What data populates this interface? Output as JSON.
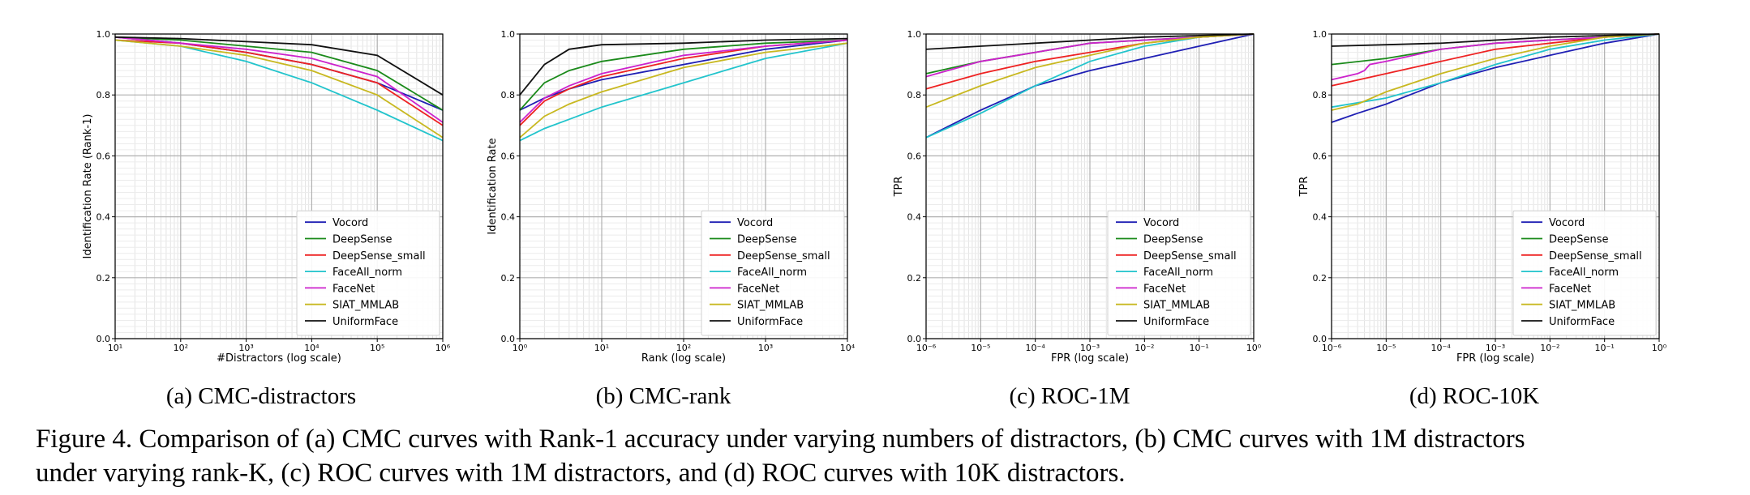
{
  "figure": {
    "caption_lines": [
      "Figure 4. Comparison of (a) CMC curves with Rank-1 accuracy under varying numbers of distractors, (b) CMC curves with 1M distractors",
      "under varying rank-K, (c) ROC curves with 1M distractors, and (d) ROC curves with 10K distractors."
    ]
  },
  "legend_colors": {
    "Vocord": "#1f1fb4",
    "DeepSense": "#1a8a1a",
    "DeepSense_small": "#ee2222",
    "FaceAll_norm": "#22c4cc",
    "FaceNet": "#cc22cc",
    "SIAT_MMLAB": "#c8b820",
    "UniformFace": "#111111"
  },
  "chart_data": [
    {
      "type": "line",
      "subcaption": "(a)  CMC-distractors",
      "xlabel": "#Distractors (log scale)",
      "ylabel": "Identification Rate (Rank-1)",
      "xscale": "log",
      "xlim": [
        10,
        1000000
      ],
      "ylim": [
        0.0,
        1.0
      ],
      "x_ticks": [
        10,
        100,
        1000,
        10000,
        100000,
        1000000
      ],
      "x_tick_labels": [
        "10¹",
        "10²",
        "10³",
        "10⁴",
        "10⁵",
        "10⁶"
      ],
      "y_ticks": [
        0.0,
        0.2,
        0.4,
        0.6,
        0.8,
        1.0
      ],
      "y_tick_labels": [
        "0.0",
        "0.2",
        "0.4",
        "0.6",
        "0.8",
        "1.0"
      ],
      "grid": true,
      "legend_position": "lower-right",
      "series": [
        {
          "name": "Vocord",
          "x": [
            10,
            100,
            1000,
            10000,
            100000,
            1000000
          ],
          "values": [
            0.99,
            0.97,
            0.94,
            0.9,
            0.84,
            0.75
          ]
        },
        {
          "name": "DeepSense",
          "x": [
            10,
            100,
            1000,
            10000,
            100000,
            1000000
          ],
          "values": [
            0.99,
            0.98,
            0.96,
            0.94,
            0.88,
            0.75
          ]
        },
        {
          "name": "DeepSense_small",
          "x": [
            10,
            100,
            1000,
            10000,
            100000,
            1000000
          ],
          "values": [
            0.98,
            0.97,
            0.94,
            0.9,
            0.84,
            0.7
          ]
        },
        {
          "name": "FaceAll_norm",
          "x": [
            10,
            100,
            1000,
            10000,
            100000,
            1000000
          ],
          "values": [
            0.98,
            0.96,
            0.91,
            0.84,
            0.75,
            0.65
          ]
        },
        {
          "name": "FaceNet",
          "x": [
            10,
            100,
            1000,
            10000,
            100000,
            1000000
          ],
          "values": [
            0.99,
            0.97,
            0.95,
            0.92,
            0.86,
            0.71
          ]
        },
        {
          "name": "SIAT_MMLAB",
          "x": [
            10,
            100,
            1000,
            10000,
            100000,
            1000000
          ],
          "values": [
            0.98,
            0.96,
            0.93,
            0.88,
            0.8,
            0.66
          ]
        },
        {
          "name": "UniformFace",
          "x": [
            10,
            100,
            1000,
            10000,
            100000,
            1000000
          ],
          "values": [
            0.99,
            0.985,
            0.975,
            0.965,
            0.93,
            0.8
          ]
        }
      ]
    },
    {
      "type": "line",
      "subcaption": "(b)  CMC-rank",
      "xlabel": "Rank (log scale)",
      "ylabel": "Identification Rate",
      "xscale": "log",
      "xlim": [
        1,
        10000
      ],
      "ylim": [
        0.0,
        1.0
      ],
      "x_ticks": [
        1,
        10,
        100,
        1000,
        10000
      ],
      "x_tick_labels": [
        "10⁰",
        "10¹",
        "10²",
        "10³",
        "10⁴"
      ],
      "y_ticks": [
        0.0,
        0.2,
        0.4,
        0.6,
        0.8,
        1.0
      ],
      "y_tick_labels": [
        "0.0",
        "0.2",
        "0.4",
        "0.6",
        "0.8",
        "1.0"
      ],
      "grid": true,
      "legend_position": "lower-right",
      "series": [
        {
          "name": "Vocord",
          "x": [
            1,
            2,
            4,
            10,
            100,
            1000,
            10000
          ],
          "values": [
            0.75,
            0.79,
            0.82,
            0.85,
            0.9,
            0.95,
            0.98
          ]
        },
        {
          "name": "DeepSense",
          "x": [
            1,
            2,
            4,
            10,
            100,
            1000,
            10000
          ],
          "values": [
            0.75,
            0.84,
            0.88,
            0.91,
            0.95,
            0.97,
            0.98
          ]
        },
        {
          "name": "DeepSense_small",
          "x": [
            1,
            2,
            4,
            10,
            100,
            1000,
            10000
          ],
          "values": [
            0.7,
            0.78,
            0.82,
            0.86,
            0.92,
            0.96,
            0.98
          ]
        },
        {
          "name": "FaceAll_norm",
          "x": [
            1,
            2,
            4,
            10,
            100,
            1000,
            10000
          ],
          "values": [
            0.65,
            0.69,
            0.72,
            0.76,
            0.84,
            0.92,
            0.97
          ]
        },
        {
          "name": "FaceNet",
          "x": [
            1,
            2,
            4,
            10,
            100,
            1000,
            10000
          ],
          "values": [
            0.71,
            0.79,
            0.83,
            0.87,
            0.93,
            0.96,
            0.98
          ]
        },
        {
          "name": "SIAT_MMLAB",
          "x": [
            1,
            2,
            4,
            10,
            100,
            1000,
            10000
          ],
          "values": [
            0.66,
            0.73,
            0.77,
            0.81,
            0.89,
            0.94,
            0.97
          ]
        },
        {
          "name": "UniformFace",
          "x": [
            1,
            2,
            4,
            10,
            100,
            1000,
            10000
          ],
          "values": [
            0.8,
            0.9,
            0.95,
            0.965,
            0.97,
            0.98,
            0.985
          ]
        }
      ]
    },
    {
      "type": "line",
      "subcaption": "(c)  ROC-1M",
      "xlabel": "FPR (log scale)",
      "ylabel": "TPR",
      "xscale": "log",
      "xlim": [
        1e-06,
        1
      ],
      "ylim": [
        0.0,
        1.0
      ],
      "x_ticks": [
        1e-06,
        1e-05,
        0.0001,
        0.001,
        0.01,
        0.1,
        1
      ],
      "x_tick_labels": [
        "10⁻⁶",
        "10⁻⁵",
        "10⁻⁴",
        "10⁻³",
        "10⁻²",
        "10⁻¹",
        "10⁰"
      ],
      "y_ticks": [
        0.0,
        0.2,
        0.4,
        0.6,
        0.8,
        1.0
      ],
      "y_tick_labels": [
        "0.0",
        "0.2",
        "0.4",
        "0.6",
        "0.8",
        "1.0"
      ],
      "grid": true,
      "legend_position": "lower-right",
      "series": [
        {
          "name": "Vocord",
          "x": [
            1e-06,
            1e-05,
            0.0001,
            0.001,
            0.01,
            0.1,
            1
          ],
          "values": [
            0.66,
            0.75,
            0.83,
            0.88,
            0.92,
            0.96,
            1.0
          ]
        },
        {
          "name": "DeepSense",
          "x": [
            1e-06,
            1e-05,
            0.0001,
            0.001,
            0.01,
            0.1,
            1
          ],
          "values": [
            0.87,
            0.91,
            0.94,
            0.97,
            0.98,
            0.99,
            1.0
          ]
        },
        {
          "name": "DeepSense_small",
          "x": [
            1e-06,
            1e-05,
            0.0001,
            0.001,
            0.01,
            0.1,
            1
          ],
          "values": [
            0.82,
            0.87,
            0.91,
            0.94,
            0.97,
            0.99,
            1.0
          ]
        },
        {
          "name": "FaceAll_norm",
          "x": [
            1e-06,
            1e-05,
            0.0001,
            0.001,
            0.01,
            0.1,
            1
          ],
          "values": [
            0.66,
            0.74,
            0.83,
            0.91,
            0.96,
            0.99,
            1.0
          ]
        },
        {
          "name": "FaceNet",
          "x": [
            1e-06,
            1e-05,
            0.0001,
            0.001,
            0.01,
            0.1,
            1
          ],
          "values": [
            0.86,
            0.91,
            0.94,
            0.97,
            0.98,
            0.99,
            1.0
          ]
        },
        {
          "name": "SIAT_MMLAB",
          "x": [
            1e-06,
            1e-05,
            0.0001,
            0.001,
            0.01,
            0.1,
            1
          ],
          "values": [
            0.76,
            0.83,
            0.89,
            0.93,
            0.97,
            0.99,
            1.0
          ]
        },
        {
          "name": "UniformFace",
          "x": [
            1e-06,
            1e-05,
            0.0001,
            0.001,
            0.01,
            0.1,
            1
          ],
          "values": [
            0.95,
            0.96,
            0.97,
            0.98,
            0.99,
            0.995,
            1.0
          ]
        }
      ]
    },
    {
      "type": "line",
      "subcaption": "(d)  ROC-10K",
      "xlabel": "FPR (log scale)",
      "ylabel": "TPR",
      "xscale": "log",
      "xlim": [
        1e-06,
        1
      ],
      "ylim": [
        0.0,
        1.0
      ],
      "x_ticks": [
        1e-06,
        1e-05,
        0.0001,
        0.001,
        0.01,
        0.1,
        1
      ],
      "x_tick_labels": [
        "10⁻⁶",
        "10⁻⁵",
        "10⁻⁴",
        "10⁻³",
        "10⁻²",
        "10⁻¹",
        "10⁰"
      ],
      "y_ticks": [
        0.0,
        0.2,
        0.4,
        0.6,
        0.8,
        1.0
      ],
      "y_tick_labels": [
        "0.0",
        "0.2",
        "0.4",
        "0.6",
        "0.8",
        "1.0"
      ],
      "grid": true,
      "legend_position": "lower-right",
      "series": [
        {
          "name": "Vocord",
          "x": [
            1e-06,
            3e-06,
            1e-05,
            0.0001,
            0.001,
            0.01,
            0.1,
            1
          ],
          "values": [
            0.71,
            0.74,
            0.77,
            0.84,
            0.89,
            0.93,
            0.97,
            1.0
          ]
        },
        {
          "name": "DeepSense",
          "x": [
            1e-06,
            1e-05,
            0.0001,
            0.001,
            0.01,
            0.1,
            1
          ],
          "values": [
            0.9,
            0.92,
            0.95,
            0.97,
            0.98,
            0.99,
            1.0
          ]
        },
        {
          "name": "DeepSense_small",
          "x": [
            1e-06,
            1e-05,
            0.0001,
            0.001,
            0.01,
            0.1,
            1
          ],
          "values": [
            0.83,
            0.87,
            0.91,
            0.95,
            0.97,
            0.99,
            1.0
          ]
        },
        {
          "name": "FaceAll_norm",
          "x": [
            1e-06,
            1e-05,
            0.0001,
            0.001,
            0.01,
            0.1,
            1
          ],
          "values": [
            0.76,
            0.79,
            0.84,
            0.9,
            0.95,
            0.98,
            1.0
          ]
        },
        {
          "name": "FaceNet",
          "x": [
            1e-06,
            3e-06,
            4e-06,
            5e-06,
            1e-05,
            0.0001,
            0.001,
            0.01,
            0.1,
            1
          ],
          "values": [
            0.85,
            0.87,
            0.88,
            0.9,
            0.91,
            0.95,
            0.97,
            0.98,
            0.99,
            1.0
          ]
        },
        {
          "name": "SIAT_MMLAB",
          "x": [
            1e-06,
            3e-06,
            1e-05,
            0.0001,
            0.001,
            0.01,
            0.1,
            1
          ],
          "values": [
            0.75,
            0.77,
            0.81,
            0.87,
            0.92,
            0.96,
            0.99,
            1.0
          ]
        },
        {
          "name": "UniformFace",
          "x": [
            1e-06,
            1e-05,
            0.0001,
            0.001,
            0.01,
            0.1,
            1
          ],
          "values": [
            0.96,
            0.965,
            0.97,
            0.98,
            0.99,
            0.995,
            1.0
          ]
        }
      ]
    }
  ]
}
